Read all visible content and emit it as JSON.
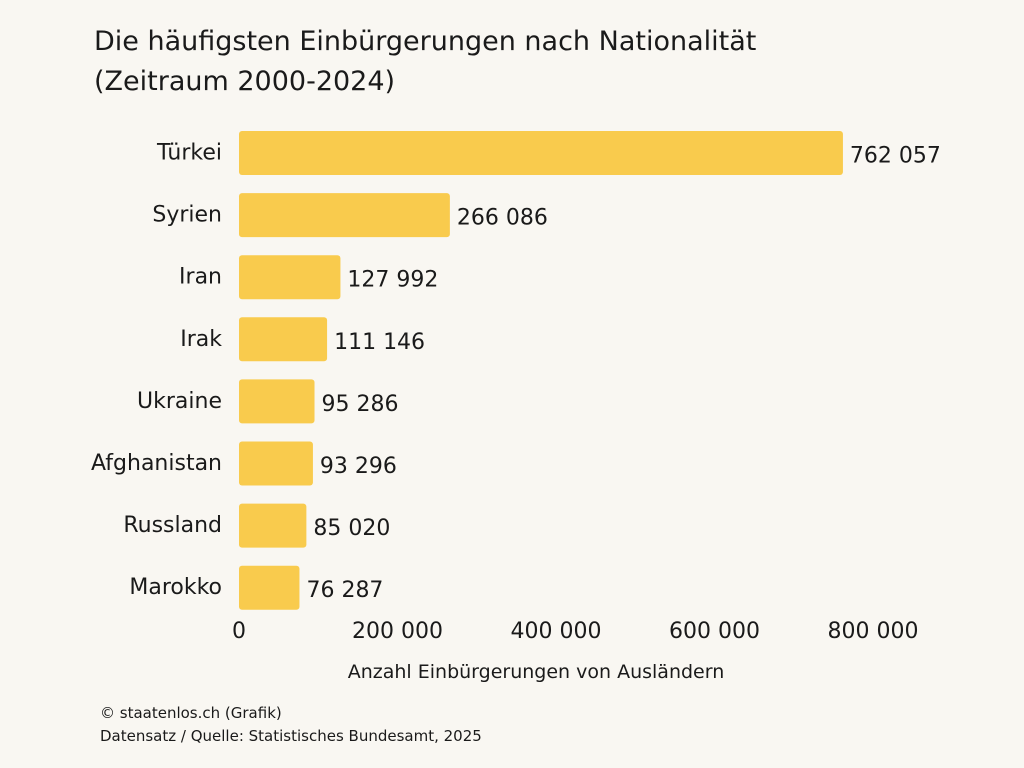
{
  "title_line1": "Die häufigsten Einbürgerungen nach Nationalität",
  "title_line2": "(Zeitraum 2000-2024)",
  "footer": {
    "credit": "© staatenlos.ch (Grafik)",
    "source": "Datensatz / Quelle: Statistisches Bundesamt, 2025"
  },
  "colors": {
    "bar": "#f9cb4d",
    "background": "#f9f7f2",
    "text": "#1a1a1a"
  },
  "chart_data": {
    "type": "bar",
    "orientation": "horizontal",
    "title": "Die häufigsten Einbürgerungen nach Nationalität (Zeitraum 2000-2024)",
    "xlabel": "Anzahl Einbürgerungen von Ausländern",
    "ylabel": "",
    "categories": [
      "Türkei",
      "Syrien",
      "Iran",
      "Irak",
      "Ukraine",
      "Afghanistan",
      "Russland",
      "Marokko"
    ],
    "values": [
      762057,
      266086,
      127992,
      111146,
      95286,
      93296,
      85020,
      76287
    ],
    "value_labels": [
      "762 057",
      "266 086",
      "127 992",
      "111 146",
      "95 286",
      "93 296",
      "85 020",
      "76 287"
    ],
    "xlim": [
      0,
      800000
    ],
    "xticks": [
      0,
      200000,
      400000,
      600000,
      800000
    ],
    "xtick_labels": [
      "0",
      "200 000",
      "400 000",
      "600 000",
      "800 000"
    ],
    "grid": false,
    "legend": "none"
  }
}
